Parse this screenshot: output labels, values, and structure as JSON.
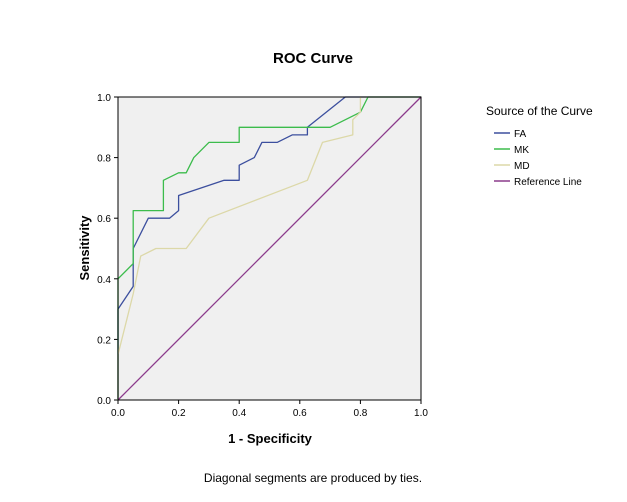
{
  "chart_data": {
    "type": "line",
    "title": "ROC Curve",
    "xlabel": "1 - Specificity",
    "ylabel": "Sensitivity",
    "xlim": [
      0,
      1
    ],
    "ylim": [
      0,
      1
    ],
    "x_ticks": [
      "0.0",
      "0.2",
      "0.4",
      "0.6",
      "0.8",
      "1.0"
    ],
    "y_ticks": [
      "0.0",
      "0.2",
      "0.4",
      "0.6",
      "0.8",
      "1.0"
    ],
    "legend_title": "Source of the Curve",
    "legend_position": "right",
    "footnote": "Diagonal segments are produced by ties.",
    "series": [
      {
        "name": "FA",
        "color": "#3c4f9e",
        "points": [
          [
            0,
            0
          ],
          [
            0,
            0.3
          ],
          [
            0.05,
            0.375
          ],
          [
            0.05,
            0.5
          ],
          [
            0.1,
            0.6
          ],
          [
            0.17,
            0.6
          ],
          [
            0.2,
            0.625
          ],
          [
            0.2,
            0.675
          ],
          [
            0.35,
            0.725
          ],
          [
            0.4,
            0.725
          ],
          [
            0.4,
            0.775
          ],
          [
            0.45,
            0.8
          ],
          [
            0.475,
            0.85
          ],
          [
            0.525,
            0.85
          ],
          [
            0.575,
            0.875
          ],
          [
            0.625,
            0.875
          ],
          [
            0.625,
            0.9
          ],
          [
            0.75,
            1.0
          ],
          [
            1.0,
            1.0
          ]
        ]
      },
      {
        "name": "MK",
        "color": "#3cbc4c",
        "points": [
          [
            0,
            0
          ],
          [
            0,
            0.4
          ],
          [
            0.05,
            0.45
          ],
          [
            0.05,
            0.625
          ],
          [
            0.15,
            0.625
          ],
          [
            0.15,
            0.725
          ],
          [
            0.2,
            0.75
          ],
          [
            0.225,
            0.75
          ],
          [
            0.25,
            0.8
          ],
          [
            0.3,
            0.85
          ],
          [
            0.4,
            0.85
          ],
          [
            0.4,
            0.9
          ],
          [
            0.7,
            0.9
          ],
          [
            0.8,
            0.95
          ],
          [
            0.825,
            1.0
          ],
          [
            1.0,
            1.0
          ]
        ]
      },
      {
        "name": "MD",
        "color": "#dcd8a8",
        "points": [
          [
            0,
            0
          ],
          [
            0,
            0.15
          ],
          [
            0.05,
            0.35
          ],
          [
            0.075,
            0.475
          ],
          [
            0.125,
            0.5
          ],
          [
            0.225,
            0.5
          ],
          [
            0.3,
            0.6
          ],
          [
            0.625,
            0.725
          ],
          [
            0.675,
            0.85
          ],
          [
            0.775,
            0.875
          ],
          [
            0.775,
            0.925
          ],
          [
            0.8,
            0.95
          ],
          [
            0.8,
            1.0
          ],
          [
            1.0,
            1.0
          ]
        ]
      },
      {
        "name": "Reference Line",
        "color": "#8b3a8b",
        "points": [
          [
            0,
            0
          ],
          [
            1,
            1
          ]
        ]
      }
    ]
  }
}
